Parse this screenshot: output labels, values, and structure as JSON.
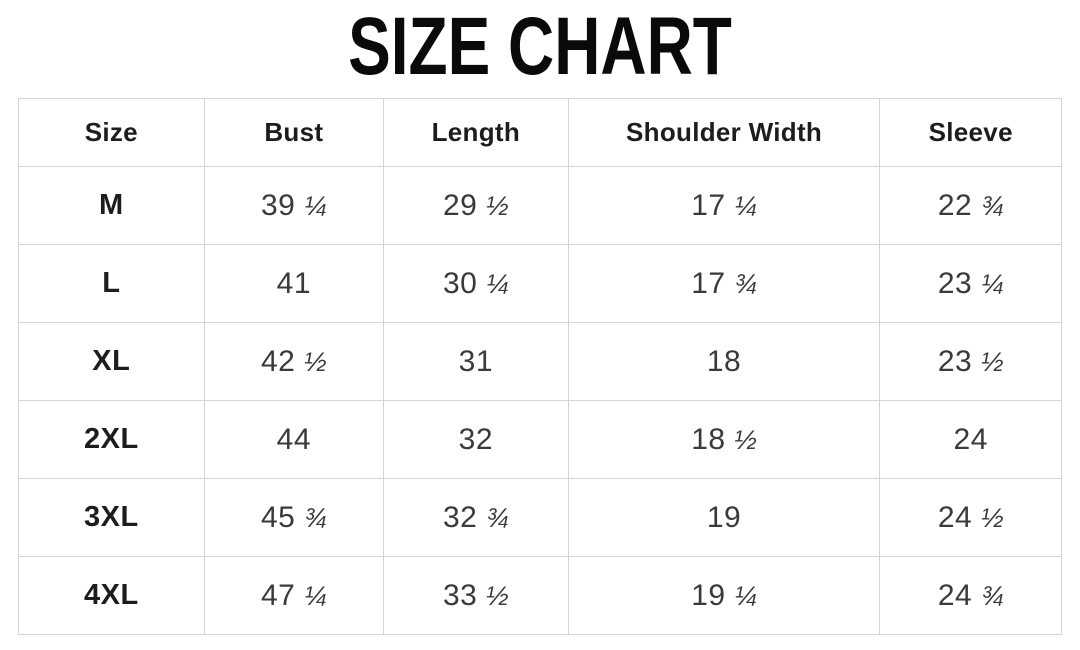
{
  "title": "SIZE CHART",
  "colors": {
    "border": "#d4d4d4",
    "title_text": "#0a0a0a",
    "header_text": "#1d1d1d",
    "cell_text": "#3a3a3a"
  },
  "chart_data": {
    "type": "table",
    "title": "SIZE CHART",
    "columns": [
      "Size",
      "Bust",
      "Length",
      "Shoulder Width",
      "Sleeve"
    ],
    "rows": [
      [
        "M",
        "39 ¼",
        "29 ½",
        "17 ¼",
        "22 ¾"
      ],
      [
        "L",
        "41",
        "30 ¼",
        "17 ¾",
        "23 ¼"
      ],
      [
        "XL",
        "42 ½",
        "31",
        "18",
        "23 ½"
      ],
      [
        "2XL",
        "44",
        "32",
        "18 ½",
        "24"
      ],
      [
        "3XL",
        "45 ¾",
        "32 ¾",
        "19",
        "24 ½"
      ],
      [
        "4XL",
        "47 ¼",
        "33 ½",
        "19 ¼",
        "24 ¾"
      ]
    ],
    "layout": {
      "grid": true,
      "column_width_percents": [
        17.8,
        17.2,
        17.7,
        29.9,
        17.4
      ]
    }
  }
}
